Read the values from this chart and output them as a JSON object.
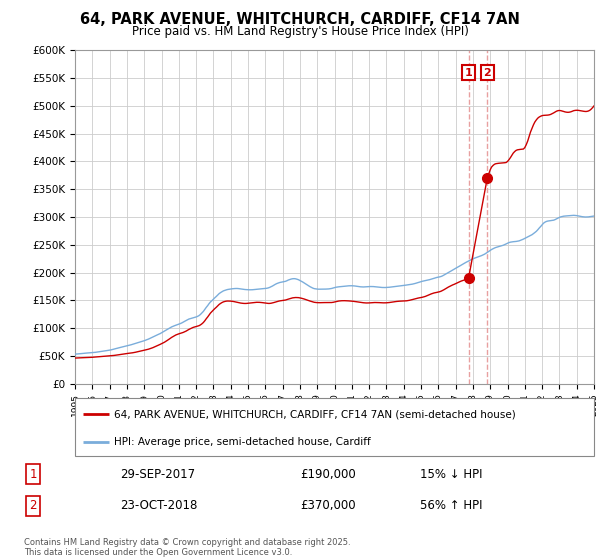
{
  "title": "64, PARK AVENUE, WHITCHURCH, CARDIFF, CF14 7AN",
  "subtitle": "Price paid vs. HM Land Registry's House Price Index (HPI)",
  "yticks": [
    0,
    50000,
    100000,
    150000,
    200000,
    250000,
    300000,
    350000,
    400000,
    450000,
    500000,
    550000,
    600000
  ],
  "ytick_labels": [
    "£0",
    "£50K",
    "£100K",
    "£150K",
    "£200K",
    "£250K",
    "£300K",
    "£350K",
    "£400K",
    "£450K",
    "£500K",
    "£550K",
    "£600K"
  ],
  "xmin": 1995,
  "xmax": 2025,
  "ymin": 0,
  "ymax": 600000,
  "sale1_x": 2017.75,
  "sale1_y": 190000,
  "sale2_x": 2018.83,
  "sale2_y": 370000,
  "sale1_label": "1",
  "sale2_label": "2",
  "red_color": "#cc0000",
  "blue_color": "#7aaddb",
  "vline_color": "#e8a0a0",
  "legend_line1": "64, PARK AVENUE, WHITCHURCH, CARDIFF, CF14 7AN (semi-detached house)",
  "legend_line2": "HPI: Average price, semi-detached house, Cardiff",
  "table_row1_num": "1",
  "table_row1_date": "29-SEP-2017",
  "table_row1_price": "£190,000",
  "table_row1_hpi": "15% ↓ HPI",
  "table_row2_num": "2",
  "table_row2_date": "23-OCT-2018",
  "table_row2_price": "£370,000",
  "table_row2_hpi": "56% ↑ HPI",
  "footer": "Contains HM Land Registry data © Crown copyright and database right 2025.\nThis data is licensed under the Open Government Licence v3.0.",
  "hpi_x": [
    1995.0,
    1995.08,
    1995.17,
    1995.25,
    1995.33,
    1995.42,
    1995.5,
    1995.58,
    1995.67,
    1995.75,
    1995.83,
    1995.92,
    1996.0,
    1996.08,
    1996.17,
    1996.25,
    1996.33,
    1996.42,
    1996.5,
    1996.58,
    1996.67,
    1996.75,
    1996.83,
    1996.92,
    1997.0,
    1997.08,
    1997.17,
    1997.25,
    1997.33,
    1997.42,
    1997.5,
    1997.58,
    1997.67,
    1997.75,
    1997.83,
    1997.92,
    1998.0,
    1998.08,
    1998.17,
    1998.25,
    1998.33,
    1998.42,
    1998.5,
    1998.58,
    1998.67,
    1998.75,
    1998.83,
    1998.92,
    1999.0,
    1999.08,
    1999.17,
    1999.25,
    1999.33,
    1999.42,
    1999.5,
    1999.58,
    1999.67,
    1999.75,
    1999.83,
    1999.92,
    2000.0,
    2000.08,
    2000.17,
    2000.25,
    2000.33,
    2000.42,
    2000.5,
    2000.58,
    2000.67,
    2000.75,
    2000.83,
    2000.92,
    2001.0,
    2001.08,
    2001.17,
    2001.25,
    2001.33,
    2001.42,
    2001.5,
    2001.58,
    2001.67,
    2001.75,
    2001.83,
    2001.92,
    2002.0,
    2002.08,
    2002.17,
    2002.25,
    2002.33,
    2002.42,
    2002.5,
    2002.58,
    2002.67,
    2002.75,
    2002.83,
    2002.92,
    2003.0,
    2003.08,
    2003.17,
    2003.25,
    2003.33,
    2003.42,
    2003.5,
    2003.58,
    2003.67,
    2003.75,
    2003.83,
    2003.92,
    2004.0,
    2004.08,
    2004.17,
    2004.25,
    2004.33,
    2004.42,
    2004.5,
    2004.58,
    2004.67,
    2004.75,
    2004.83,
    2004.92,
    2005.0,
    2005.08,
    2005.17,
    2005.25,
    2005.33,
    2005.42,
    2005.5,
    2005.58,
    2005.67,
    2005.75,
    2005.83,
    2005.92,
    2006.0,
    2006.08,
    2006.17,
    2006.25,
    2006.33,
    2006.42,
    2006.5,
    2006.58,
    2006.67,
    2006.75,
    2006.83,
    2006.92,
    2007.0,
    2007.08,
    2007.17,
    2007.25,
    2007.33,
    2007.42,
    2007.5,
    2007.58,
    2007.67,
    2007.75,
    2007.83,
    2007.92,
    2008.0,
    2008.08,
    2008.17,
    2008.25,
    2008.33,
    2008.42,
    2008.5,
    2008.58,
    2008.67,
    2008.75,
    2008.83,
    2008.92,
    2009.0,
    2009.08,
    2009.17,
    2009.25,
    2009.33,
    2009.42,
    2009.5,
    2009.58,
    2009.67,
    2009.75,
    2009.83,
    2009.92,
    2010.0,
    2010.08,
    2010.17,
    2010.25,
    2010.33,
    2010.42,
    2010.5,
    2010.58,
    2010.67,
    2010.75,
    2010.83,
    2010.92,
    2011.0,
    2011.08,
    2011.17,
    2011.25,
    2011.33,
    2011.42,
    2011.5,
    2011.58,
    2011.67,
    2011.75,
    2011.83,
    2011.92,
    2012.0,
    2012.08,
    2012.17,
    2012.25,
    2012.33,
    2012.42,
    2012.5,
    2012.58,
    2012.67,
    2012.75,
    2012.83,
    2012.92,
    2013.0,
    2013.08,
    2013.17,
    2013.25,
    2013.33,
    2013.42,
    2013.5,
    2013.58,
    2013.67,
    2013.75,
    2013.83,
    2013.92,
    2014.0,
    2014.08,
    2014.17,
    2014.25,
    2014.33,
    2014.42,
    2014.5,
    2014.58,
    2014.67,
    2014.75,
    2014.83,
    2014.92,
    2015.0,
    2015.08,
    2015.17,
    2015.25,
    2015.33,
    2015.42,
    2015.5,
    2015.58,
    2015.67,
    2015.75,
    2015.83,
    2015.92,
    2016.0,
    2016.08,
    2016.17,
    2016.25,
    2016.33,
    2016.42,
    2016.5,
    2016.58,
    2016.67,
    2016.75,
    2016.83,
    2016.92,
    2017.0,
    2017.08,
    2017.17,
    2017.25,
    2017.33,
    2017.42,
    2017.5,
    2017.58,
    2017.67,
    2017.75,
    2017.83,
    2017.92,
    2018.0,
    2018.08,
    2018.17,
    2018.25,
    2018.33,
    2018.42,
    2018.5,
    2018.58,
    2018.67,
    2018.75,
    2018.83,
    2018.92,
    2019.0,
    2019.08,
    2019.17,
    2019.25,
    2019.33,
    2019.42,
    2019.5,
    2019.58,
    2019.67,
    2019.75,
    2019.83,
    2019.92,
    2020.0,
    2020.08,
    2020.17,
    2020.25,
    2020.33,
    2020.42,
    2020.5,
    2020.58,
    2020.67,
    2020.75,
    2020.83,
    2020.92,
    2021.0,
    2021.08,
    2021.17,
    2021.25,
    2021.33,
    2021.42,
    2021.5,
    2021.58,
    2021.67,
    2021.75,
    2021.83,
    2021.92,
    2022.0,
    2022.08,
    2022.17,
    2022.25,
    2022.33,
    2022.42,
    2022.5,
    2022.58,
    2022.67,
    2022.75,
    2022.83,
    2022.92,
    2023.0,
    2023.08,
    2023.17,
    2023.25,
    2023.33,
    2023.42,
    2023.5,
    2023.58,
    2023.67,
    2023.75,
    2023.83,
    2023.92,
    2024.0,
    2024.08,
    2024.17,
    2024.25,
    2024.33,
    2024.42,
    2024.5,
    2024.58,
    2024.67,
    2024.75,
    2024.83,
    2024.92,
    2025.0
  ],
  "hpi_y": [
    53000,
    53200,
    53500,
    53700,
    54000,
    54200,
    54500,
    54700,
    55000,
    55200,
    55400,
    55600,
    55800,
    56000,
    56300,
    56700,
    57200,
    57600,
    58000,
    58300,
    58600,
    59000,
    59400,
    59800,
    60200,
    60700,
    61400,
    62100,
    62800,
    63500,
    64200,
    64900,
    65500,
    66100,
    66700,
    67300,
    67900,
    68500,
    69200,
    70000,
    70800,
    71600,
    72400,
    73200,
    74000,
    74800,
    75600,
    76400,
    77200,
    78100,
    79100,
    80200,
    81400,
    82700,
    84000,
    85200,
    86400,
    87600,
    88800,
    90000,
    91500,
    93000,
    94500,
    96000,
    97500,
    99000,
    100500,
    102000,
    103200,
    104200,
    105100,
    106000,
    107000,
    108000,
    109200,
    110500,
    112000,
    113500,
    115000,
    116200,
    117000,
    117800,
    118500,
    119300,
    120000,
    121000,
    122500,
    124500,
    127000,
    130000,
    133500,
    137000,
    140500,
    144000,
    147000,
    149500,
    152000,
    154500,
    157000,
    159500,
    162000,
    164000,
    165500,
    167000,
    168000,
    168800,
    169500,
    170000,
    170400,
    170700,
    171000,
    171200,
    171300,
    171200,
    170900,
    170500,
    170100,
    169700,
    169400,
    169200,
    169000,
    168900,
    168900,
    169000,
    169200,
    169500,
    169800,
    170100,
    170400,
    170600,
    170800,
    171000,
    171200,
    171600,
    172300,
    173200,
    174400,
    175800,
    177300,
    178800,
    180200,
    181200,
    182000,
    182600,
    183000,
    183500,
    184200,
    185200,
    186500,
    187500,
    188300,
    188800,
    189000,
    188700,
    188000,
    187000,
    185700,
    184300,
    182800,
    181200,
    179600,
    177900,
    176200,
    174600,
    173100,
    171900,
    171000,
    170500,
    170200,
    170000,
    170000,
    170100,
    170200,
    170200,
    170200,
    170300,
    170500,
    170800,
    171300,
    172000,
    172800,
    173500,
    174000,
    174300,
    174500,
    174700,
    175000,
    175300,
    175600,
    175900,
    176100,
    176200,
    176200,
    176100,
    175800,
    175400,
    175000,
    174600,
    174300,
    174100,
    174000,
    174100,
    174300,
    174500,
    174700,
    174800,
    174800,
    174700,
    174500,
    174200,
    173900,
    173600,
    173300,
    173100,
    173000,
    173000,
    173100,
    173300,
    173500,
    173800,
    174100,
    174400,
    174700,
    175000,
    175300,
    175600,
    175900,
    176300,
    176700,
    177100,
    177500,
    177900,
    178200,
    178600,
    179100,
    179700,
    180400,
    181200,
    182000,
    182800,
    183600,
    184300,
    184900,
    185400,
    185900,
    186500,
    187200,
    188000,
    188900,
    189800,
    190600,
    191200,
    191700,
    192200,
    193000,
    194100,
    195500,
    197000,
    198500,
    200000,
    201500,
    203000,
    204500,
    206000,
    207500,
    209000,
    210500,
    212000,
    213500,
    215000,
    216500,
    218000,
    219500,
    221000,
    222300,
    223500,
    224600,
    225700,
    226700,
    227600,
    228500,
    229400,
    230500,
    231600,
    233000,
    234500,
    236200,
    238000,
    239800,
    241500,
    243000,
    244200,
    245200,
    246000,
    246700,
    247400,
    248200,
    249100,
    250200,
    251500,
    252800,
    253900,
    254700,
    255200,
    255500,
    255700,
    256000,
    256400,
    257000,
    257900,
    259000,
    260200,
    261500,
    262800,
    264100,
    265400,
    266700,
    268200,
    270000,
    272000,
    274300,
    277000,
    280000,
    283000,
    286000,
    288800,
    290800,
    292000,
    292700,
    293100,
    293300,
    293700,
    294300,
    295300,
    296600,
    298000,
    299300,
    300300,
    301000,
    301500,
    301800,
    302000,
    302200,
    302500,
    302800,
    303000,
    303000,
    302800,
    302500,
    302000,
    301500,
    301000,
    300500,
    300200,
    300000,
    300000,
    300200,
    300600,
    301000,
    301400,
    301700
  ],
  "red_x": [
    1995.0,
    1995.08,
    1995.17,
    1995.25,
    1995.33,
    1995.42,
    1995.5,
    1995.58,
    1995.67,
    1995.75,
    1995.83,
    1995.92,
    1996.0,
    1996.08,
    1996.17,
    1996.25,
    1996.33,
    1996.42,
    1996.5,
    1996.58,
    1996.67,
    1996.75,
    1996.83,
    1996.92,
    1997.0,
    1997.08,
    1997.17,
    1997.25,
    1997.33,
    1997.42,
    1997.5,
    1997.58,
    1997.67,
    1997.75,
    1997.83,
    1997.92,
    1998.0,
    1998.08,
    1998.17,
    1998.25,
    1998.33,
    1998.42,
    1998.5,
    1998.58,
    1998.67,
    1998.75,
    1998.83,
    1998.92,
    1999.0,
    1999.08,
    1999.17,
    1999.25,
    1999.33,
    1999.42,
    1999.5,
    1999.58,
    1999.67,
    1999.75,
    1999.83,
    1999.92,
    2000.0,
    2000.08,
    2000.17,
    2000.25,
    2000.33,
    2000.42,
    2000.5,
    2000.58,
    2000.67,
    2000.75,
    2000.83,
    2000.92,
    2001.0,
    2001.08,
    2001.17,
    2001.25,
    2001.33,
    2001.42,
    2001.5,
    2001.58,
    2001.67,
    2001.75,
    2001.83,
    2001.92,
    2002.0,
    2002.08,
    2002.17,
    2002.25,
    2002.33,
    2002.42,
    2002.5,
    2002.58,
    2002.67,
    2002.75,
    2002.83,
    2002.92,
    2003.0,
    2003.08,
    2003.17,
    2003.25,
    2003.33,
    2003.42,
    2003.5,
    2003.58,
    2003.67,
    2003.75,
    2003.83,
    2003.92,
    2004.0,
    2004.08,
    2004.17,
    2004.25,
    2004.33,
    2004.42,
    2004.5,
    2004.58,
    2004.67,
    2004.75,
    2004.83,
    2004.92,
    2005.0,
    2005.08,
    2005.17,
    2005.25,
    2005.33,
    2005.42,
    2005.5,
    2005.58,
    2005.67,
    2005.75,
    2005.83,
    2005.92,
    2006.0,
    2006.08,
    2006.17,
    2006.25,
    2006.33,
    2006.42,
    2006.5,
    2006.58,
    2006.67,
    2006.75,
    2006.83,
    2006.92,
    2007.0,
    2007.08,
    2007.17,
    2007.25,
    2007.33,
    2007.42,
    2007.5,
    2007.58,
    2007.67,
    2007.75,
    2007.83,
    2007.92,
    2008.0,
    2008.08,
    2008.17,
    2008.25,
    2008.33,
    2008.42,
    2008.5,
    2008.58,
    2008.67,
    2008.75,
    2008.83,
    2008.92,
    2009.0,
    2009.08,
    2009.17,
    2009.25,
    2009.33,
    2009.42,
    2009.5,
    2009.58,
    2009.67,
    2009.75,
    2009.83,
    2009.92,
    2010.0,
    2010.08,
    2010.17,
    2010.25,
    2010.33,
    2010.42,
    2010.5,
    2010.58,
    2010.67,
    2010.75,
    2010.83,
    2010.92,
    2011.0,
    2011.08,
    2011.17,
    2011.25,
    2011.33,
    2011.42,
    2011.5,
    2011.58,
    2011.67,
    2011.75,
    2011.83,
    2011.92,
    2012.0,
    2012.08,
    2012.17,
    2012.25,
    2012.33,
    2012.42,
    2012.5,
    2012.58,
    2012.67,
    2012.75,
    2012.83,
    2012.92,
    2013.0,
    2013.08,
    2013.17,
    2013.25,
    2013.33,
    2013.42,
    2013.5,
    2013.58,
    2013.67,
    2013.75,
    2013.83,
    2013.92,
    2014.0,
    2014.08,
    2014.17,
    2014.25,
    2014.33,
    2014.42,
    2014.5,
    2014.58,
    2014.67,
    2014.75,
    2014.83,
    2014.92,
    2015.0,
    2015.08,
    2015.17,
    2015.25,
    2015.33,
    2015.42,
    2015.5,
    2015.58,
    2015.67,
    2015.75,
    2015.83,
    2015.92,
    2016.0,
    2016.08,
    2016.17,
    2016.25,
    2016.33,
    2016.42,
    2016.5,
    2016.58,
    2016.67,
    2016.75,
    2016.83,
    2016.92,
    2017.0,
    2017.08,
    2017.17,
    2017.25,
    2017.33,
    2017.42,
    2017.5,
    2017.58,
    2017.67,
    2017.75,
    2018.83,
    2019.0,
    2019.08,
    2019.17,
    2019.25,
    2019.33,
    2019.42,
    2019.5,
    2019.58,
    2019.67,
    2019.75,
    2019.83,
    2019.92,
    2020.0,
    2020.08,
    2020.17,
    2020.25,
    2020.33,
    2020.42,
    2020.5,
    2020.58,
    2020.67,
    2020.75,
    2020.83,
    2020.92,
    2021.0,
    2021.08,
    2021.17,
    2021.25,
    2021.33,
    2021.42,
    2021.5,
    2021.58,
    2021.67,
    2021.75,
    2021.83,
    2021.92,
    2022.0,
    2022.08,
    2022.17,
    2022.25,
    2022.33,
    2022.42,
    2022.5,
    2022.58,
    2022.67,
    2022.75,
    2022.83,
    2022.92,
    2023.0,
    2023.08,
    2023.17,
    2023.25,
    2023.33,
    2023.42,
    2023.5,
    2023.58,
    2023.67,
    2023.75,
    2023.83,
    2023.92,
    2024.0,
    2024.08,
    2024.17,
    2024.25,
    2024.33,
    2024.42,
    2024.5,
    2024.58,
    2024.67,
    2024.75,
    2024.83,
    2024.92,
    2025.0
  ],
  "red_y": [
    46000,
    46100,
    46200,
    46300,
    46400,
    46500,
    46600,
    46700,
    46800,
    46900,
    47000,
    47200,
    47400,
    47600,
    47800,
    48000,
    48300,
    48500,
    48700,
    48900,
    49100,
    49300,
    49500,
    49700,
    49900,
    50100,
    50400,
    50700,
    51000,
    51400,
    51800,
    52200,
    52600,
    53000,
    53400,
    53800,
    54200,
    54500,
    54800,
    55100,
    55500,
    56000,
    56500,
    57100,
    57700,
    58300,
    58900,
    59500,
    60100,
    60700,
    61300,
    62000,
    62800,
    63700,
    64700,
    65800,
    67000,
    68200,
    69400,
    70600,
    71800,
    73100,
    74500,
    76000,
    77700,
    79500,
    81300,
    83100,
    84800,
    86300,
    87600,
    88700,
    89600,
    90400,
    91200,
    92100,
    93200,
    94500,
    96000,
    97500,
    98900,
    100200,
    101200,
    102000,
    102700,
    103400,
    104300,
    105700,
    107500,
    110000,
    113000,
    116500,
    120000,
    123500,
    127000,
    130000,
    132500,
    135000,
    137500,
    140000,
    142500,
    144500,
    146000,
    147200,
    148000,
    148500,
    148700,
    148700,
    148500,
    148200,
    147800,
    147300,
    146700,
    146100,
    145500,
    145000,
    144600,
    144400,
    144300,
    144400,
    144700,
    145100,
    145500,
    145800,
    146100,
    146300,
    146400,
    146400,
    146300,
    146100,
    145800,
    145400,
    145000,
    144600,
    144400,
    144400,
    144700,
    145300,
    146000,
    146800,
    147600,
    148300,
    148900,
    149300,
    149600,
    150000,
    150500,
    151200,
    152100,
    153000,
    153800,
    154400,
    154800,
    155000,
    155000,
    154800,
    154400,
    153800,
    153100,
    152300,
    151400,
    150500,
    149600,
    148700,
    147800,
    147000,
    146400,
    146000,
    145800,
    145700,
    145700,
    145800,
    145900,
    145900,
    145900,
    145800,
    145800,
    145800,
    146000,
    146400,
    147000,
    147600,
    148200,
    148700,
    149000,
    149200,
    149300,
    149300,
    149200,
    149100,
    148900,
    148700,
    148500,
    148200,
    147900,
    147500,
    147100,
    146700,
    146300,
    145900,
    145600,
    145300,
    145200,
    145200,
    145300,
    145500,
    145700,
    145900,
    146000,
    146000,
    145900,
    145800,
    145600,
    145500,
    145400,
    145400,
    145500,
    145700,
    146000,
    146400,
    146800,
    147200,
    147600,
    147900,
    148200,
    148400,
    148500,
    148600,
    148700,
    148900,
    149100,
    149500,
    150000,
    150600,
    151300,
    152000,
    152700,
    153400,
    154000,
    154500,
    155000,
    155500,
    156200,
    157000,
    158000,
    159100,
    160300,
    161400,
    162400,
    163200,
    163800,
    164300,
    164800,
    165500,
    166500,
    167700,
    169100,
    170700,
    172300,
    173800,
    175200,
    176500,
    177700,
    178800,
    180000,
    181200,
    182400,
    183600,
    184700,
    185700,
    186500,
    187200,
    187700,
    190000,
    370000,
    385000,
    390000,
    393000,
    395000,
    396000,
    396500,
    396800,
    397000,
    397200,
    397400,
    397700,
    398100,
    400000,
    403000,
    407000,
    411000,
    415000,
    418000,
    420000,
    421000,
    421500,
    421800,
    422100,
    422400,
    425000,
    430000,
    437000,
    445000,
    453000,
    460000,
    466000,
    471000,
    475000,
    478000,
    480000,
    481500,
    482500,
    483000,
    483200,
    483300,
    483500,
    484000,
    484800,
    486000,
    487500,
    489000,
    490500,
    491500,
    491800,
    491500,
    490800,
    490000,
    489200,
    488700,
    488500,
    488800,
    489500,
    490500,
    491500,
    492000,
    492200,
    492100,
    491700,
    491200,
    490700,
    490300,
    490000,
    490100,
    490800,
    492000,
    494000,
    497000,
    500000
  ]
}
